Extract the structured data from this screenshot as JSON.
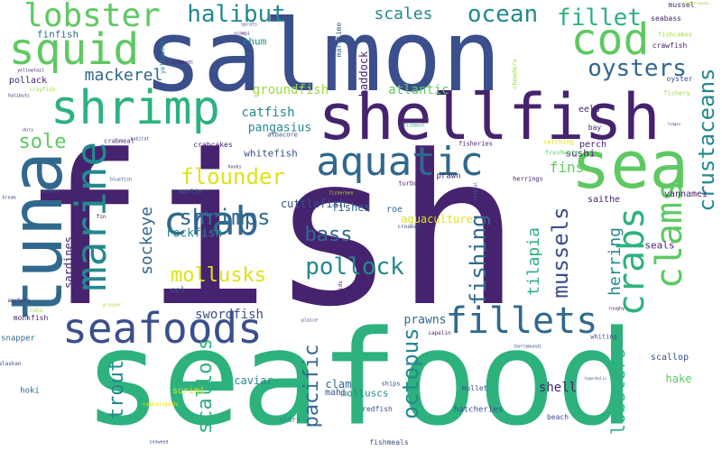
{
  "words": {
    "fish": "fish",
    "seafood": "seafood",
    "salmon": "salmon",
    "shellfish": "shellfish",
    "tuna": "tuna",
    "sea": "sea",
    "shrimp": "shrimp",
    "squid": "squid",
    "lobster": "lobster",
    "cod": "cod",
    "seafoods": "seafoods",
    "marine": "marine",
    "aquatic": "aquatic",
    "crab": "crab",
    "fillets": "fillets",
    "crabs": "crabs",
    "clams": "clams",
    "crustaceans": "crustaceans",
    "halibut": "halibut",
    "ocean": "ocean",
    "fillet": "fillet",
    "scales": "scales",
    "oysters": "oysters",
    "mackerel": "mackerel",
    "flounder": "flounder",
    "shrimps": "shrimps",
    "pollock": "pollock",
    "mollusks": "mollusks",
    "bass": "bass",
    "sole": "sole",
    "fishing": "fishing",
    "mussels": "mussels",
    "octopus": "octopus",
    "scallops": "scallops",
    "pacific": "pacific",
    "trout": "trout",
    "lobsters": "lobsters",
    "herring": "herring",
    "tilapia": "tilapia",
    "sockeye": "sockeye",
    "swordfish": "swordfish",
    "groundfish": "groundfish",
    "catfish": "catfish",
    "atlantic": "atlantic",
    "pangasius": "pangasius",
    "whitefish": "whitefish",
    "rockfish": "rockfish",
    "cuttlefish": "cuttlefish",
    "fishes": "fishes",
    "aquaculture": "aquaculture",
    "fins": "fins",
    "sushi": "sushi",
    "prawns": "prawns",
    "shell": "shell",
    "caviar": "caviar",
    "clam": "clam",
    "mahi": "mahi",
    "molluscs": "molluscs",
    "hake": "hake",
    "scallop": "scallop",
    "sardines": "sardines",
    "haddock": "haddock",
    "chum": "chum",
    "finfish": "finfish",
    "pollack": "pollack",
    "eel": "eel",
    "eels": "eels",
    "roe": "roe",
    "surimi": "surimi",
    "seals": "seals",
    "snapper": "snapper",
    "monkfish": "monkfish",
    "perch": "perch",
    "saithe": "saithe",
    "vannamei": "vannamei",
    "hatcheries": "hatcheries",
    "mullet": "mullet",
    "redfish": "redfish",
    "beach": "beach",
    "hoki": "hoki",
    "shark": "shark",
    "fishmeals": "fishmeals",
    "seabass": "seabass",
    "mussel": "mussel",
    "crawfish": "crawfish",
    "fishcakes": "fishcakes",
    "oyster": "oyster",
    "fishery": "fishery",
    "crabcakes": "crabcakes",
    "albacore": "albacore",
    "prawn": "prawn",
    "turbot": "turbot",
    "marlin": "marlin",
    "herrings": "herrings",
    "freshwater": "freshwater",
    "catching": "catching",
    "fisheries": "fisheries",
    "whiting": "whiting",
    "crabmeat": "crabmeat",
    "bay": "bay",
    "maritime": "maritime",
    "chowders": "chowders",
    "yellowtail": "yellowtail",
    "anchovy": "anchovy",
    "crayfish": "crayfish",
    "halibuts": "halibuts",
    "ships": "ships",
    "capelin": "capelin",
    "fishmeal": "fishmeal",
    "croaker": "croaker",
    "anchors": "anchors",
    "alaskan": "alaskan",
    "seaweed": "seaweed",
    "seaweeds": "seaweeds",
    "fin": "fin",
    "squids": "squids",
    "cephalopods": "cephalopods",
    "habitat": "habitat",
    "bluefish": "bluefish",
    "yellowfin": "yellowfin",
    "scampi": "scampi",
    "hooks": "hooks",
    "fishermen": "fishermen",
    "coastal": "coastal",
    "roughy": "roughy",
    "barramundi": "barramundi",
    "plaice": "plaice",
    "grouper": "grouper",
    "sprats": "sprats",
    "dory": "dory",
    "coho": "coho",
    "mediterranean": "mediterranean",
    "hyperbolic": "hyperbolic",
    "bream": "bream",
    "ledges": "ledges"
  },
  "palette": {
    "deep_purple": "#46236e",
    "indigo": "#3b4f8c",
    "steel_blue": "#31688e",
    "teal": "#23898e",
    "sea_green": "#2db27d",
    "green": "#5ec962",
    "lime": "#9fda3a",
    "yellow": "#dde318",
    "background": "#ffffff"
  }
}
